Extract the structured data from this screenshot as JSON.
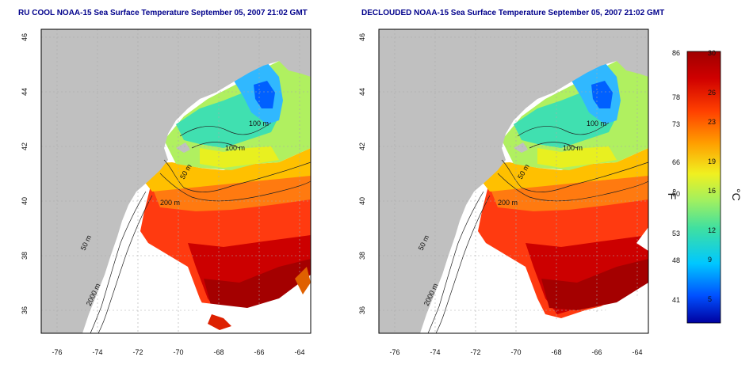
{
  "maps": [
    {
      "title": "RU COOL NOAA-15 Sea Surface Temperature September 05, 2007 21:02 GMT",
      "variant": "raw"
    },
    {
      "title": "DECLOUDED NOAA-15 Sea Surface Temperature September 05, 2007 21:02 GMT",
      "variant": "declouded"
    }
  ],
  "axes": {
    "x_ticks": [
      "-76",
      "-74",
      "-72",
      "-70",
      "-68",
      "-66",
      "-64"
    ],
    "y_ticks": [
      "46",
      "44",
      "42",
      "40",
      "38",
      "36"
    ]
  },
  "contour_labels": [
    "100 m",
    "100 m",
    "50 m",
    "200 m",
    "50 m",
    "2000 m"
  ],
  "colorbar": {
    "f_ticks": [
      "86",
      "78",
      "73",
      "66",
      "60",
      "53",
      "48",
      "41"
    ],
    "c_ticks": [
      "30",
      "26",
      "23",
      "19",
      "16",
      "12",
      "9",
      "5"
    ],
    "f_unit": "°F",
    "c_unit": "°C",
    "colors": [
      "#0000a0",
      "#0050ff",
      "#00c8ff",
      "#40e0a0",
      "#a0f060",
      "#f0f020",
      "#ffa000",
      "#ff4000",
      "#d00000",
      "#a00000"
    ]
  },
  "style": {
    "land": "#c0c0c0",
    "ocean_nodata": "#ffffff",
    "title_color": "#00008b"
  }
}
